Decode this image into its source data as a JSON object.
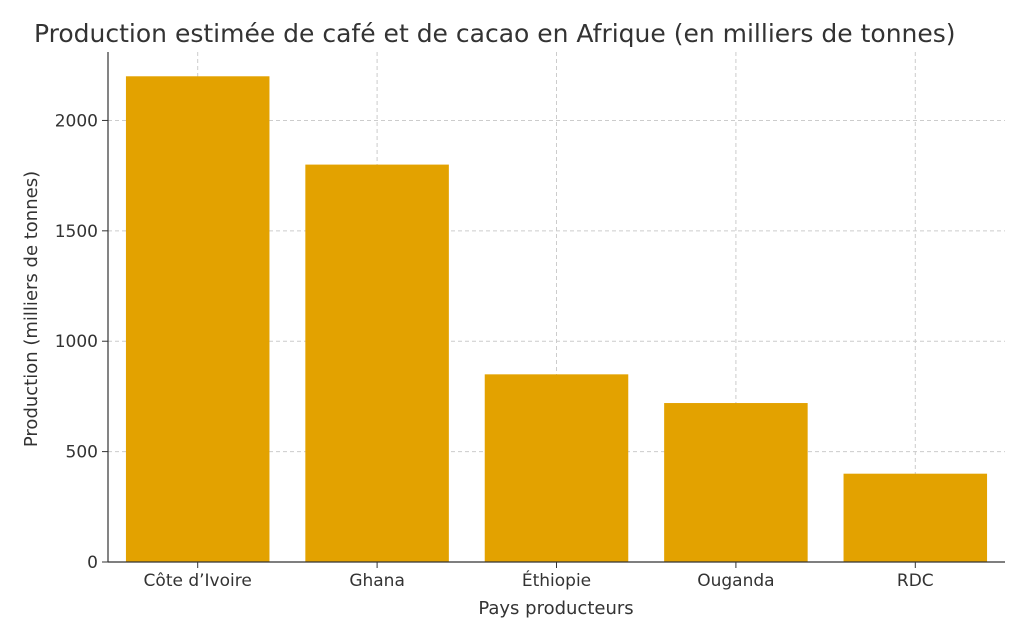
{
  "chart_data": {
    "type": "bar",
    "title": "Production estimée de café et de cacao en Afrique (en milliers de tonnes)",
    "xlabel": "Pays producteurs",
    "ylabel": "Production (milliers de tonnes)",
    "categories": [
      "Côte d’Ivoire",
      "Ghana",
      "Éthiopie",
      "Ouganda",
      "RDC"
    ],
    "values": [
      2200,
      1800,
      850,
      720,
      400
    ],
    "ylim": [
      0,
      2310
    ],
    "yticks": [
      0,
      500,
      1000,
      1500,
      2000
    ],
    "grid": true,
    "bar_color": "#E3A200",
    "grid_color": "#cccccc",
    "axis_color": "#333333"
  }
}
